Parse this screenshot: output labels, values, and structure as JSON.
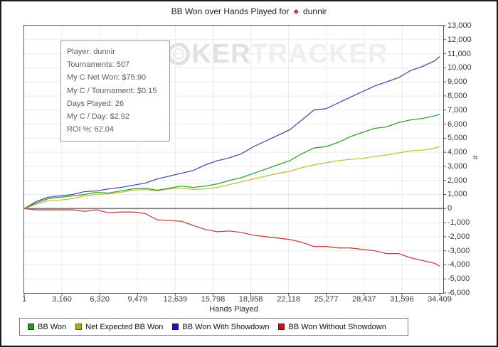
{
  "title": {
    "prefix": "BB Won over Hands Played for",
    "player": "dunnir",
    "icon": "spade-icon",
    "icon_glyph": "♠",
    "icon_color": "#d8232a"
  },
  "watermark": {
    "p": "P",
    "chip_icon": "poker-chip-icon",
    "ker": "KER",
    "tracker": "TRACKER"
  },
  "stats_box": {
    "lines": [
      "Player: dunnir",
      "Tournaments: 507",
      "My C Net Won: $75.90",
      "My C / Tournament: $0.15",
      "Days Played: 26",
      "My C / Day: $2.92",
      "ROI %: 62.04"
    ]
  },
  "axes": {
    "xlabel": "Hands Played",
    "ylabel": "#"
  },
  "colors": {
    "grid": "#ebebeb",
    "zero_line": "#787878",
    "tick": "#555555",
    "plot_border": "#5a5a5a"
  },
  "chart_data": {
    "type": "line",
    "title": "BB Won over Hands Played for dunnir",
    "xlabel": "Hands Played",
    "ylabel": "#",
    "xlim": [
      1,
      34409
    ],
    "ylim": [
      -6000,
      13000
    ],
    "grid": true,
    "legend_position": "bottom",
    "x_ticks": [
      1,
      3160,
      6320,
      9479,
      12639,
      15798,
      18958,
      22118,
      25277,
      28437,
      31596,
      34409
    ],
    "y_ticks": [
      -6000,
      -5000,
      -4000,
      -3000,
      -2000,
      -1000,
      0,
      1000,
      2000,
      3000,
      4000,
      5000,
      6000,
      7000,
      8000,
      9000,
      10000,
      11000,
      12000,
      13000
    ],
    "x": [
      1,
      1000,
      2000,
      3000,
      4000,
      5000,
      6000,
      7000,
      8000,
      9000,
      10000,
      11000,
      12000,
      13000,
      14000,
      15000,
      16000,
      17000,
      18000,
      19000,
      20000,
      21000,
      22000,
      23000,
      24000,
      25000,
      26000,
      27000,
      28000,
      29000,
      30000,
      31000,
      32000,
      33000,
      34000,
      34409
    ],
    "series": [
      {
        "name": "BB Won",
        "color": "#35a035",
        "swatch": "#18a018",
        "values": [
          0,
          400,
          700,
          800,
          900,
          1000,
          1150,
          1100,
          1250,
          1400,
          1450,
          1300,
          1450,
          1600,
          1500,
          1600,
          1750,
          2000,
          2200,
          2500,
          2800,
          3100,
          3400,
          3900,
          4300,
          4400,
          4700,
          5100,
          5400,
          5700,
          5800,
          6100,
          6300,
          6400,
          6600,
          6700
        ]
      },
      {
        "name": "Net Expected BB Won",
        "color": "#c9bc40",
        "swatch": "#b0ab18",
        "values": [
          0,
          300,
          550,
          600,
          700,
          900,
          1000,
          1050,
          1150,
          1300,
          1350,
          1250,
          1400,
          1450,
          1350,
          1400,
          1500,
          1700,
          1900,
          2100,
          2300,
          2500,
          2650,
          2900,
          3100,
          3250,
          3400,
          3500,
          3550,
          3700,
          3800,
          3950,
          4100,
          4150,
          4300,
          4400
        ]
      },
      {
        "name": "BB Won With Showdown",
        "color": "#4e4eb2",
        "swatch": "#1818c0",
        "values": [
          0,
          500,
          800,
          900,
          1000,
          1200,
          1250,
          1400,
          1500,
          1650,
          1800,
          2100,
          2300,
          2500,
          2700,
          3100,
          3400,
          3600,
          3900,
          4400,
          4800,
          5200,
          5600,
          6300,
          7000,
          7100,
          7500,
          7900,
          8300,
          8700,
          9000,
          9300,
          9800,
          10100,
          10500,
          10800
        ]
      },
      {
        "name": "BB Won Without Showdown",
        "color": "#c24444",
        "swatch": "#c01818",
        "values": [
          0,
          -100,
          -100,
          -100,
          -100,
          -200,
          -100,
          -300,
          -250,
          -250,
          -350,
          -800,
          -850,
          -900,
          -1200,
          -1500,
          -1650,
          -1600,
          -1700,
          -1900,
          -2000,
          -2100,
          -2200,
          -2400,
          -2700,
          -2700,
          -2800,
          -2800,
          -2900,
          -3000,
          -3200,
          -3200,
          -3500,
          -3700,
          -3900,
          -4100
        ]
      }
    ]
  }
}
